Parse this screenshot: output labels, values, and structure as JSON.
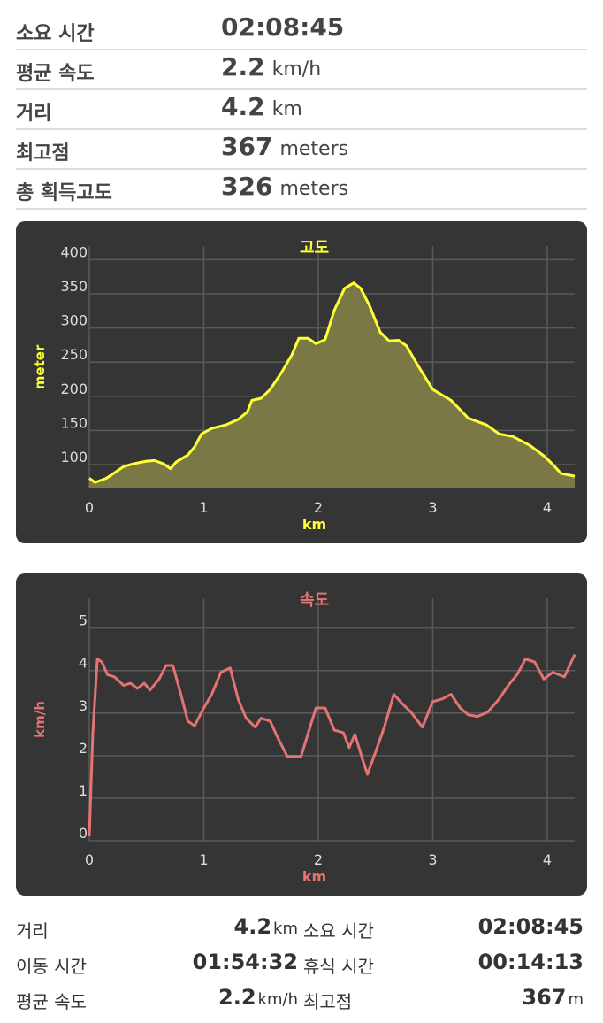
{
  "stats": [
    {
      "label": "소요 시간",
      "value": "02:08:45"
    },
    {
      "label": "평균 속도",
      "value": "2.2",
      "unit": "km/h"
    },
    {
      "label": "거리",
      "value": "4.2",
      "unit": "km"
    },
    {
      "label": "최고점",
      "value": "367",
      "unit": "meters"
    },
    {
      "label": "총 획득고도",
      "value": "326",
      "unit": "meters"
    }
  ],
  "chart_data": [
    {
      "type": "area",
      "title": "고도",
      "xlabel": "km",
      "ylabel": "meter",
      "color": "#ffff33",
      "fill": "#7a7845",
      "xlim": [
        0,
        4.24
      ],
      "ylim": [
        65,
        420
      ],
      "xticks": [
        0,
        1,
        2,
        3,
        4
      ],
      "yticks": [
        100,
        150,
        200,
        250,
        300,
        350,
        400
      ],
      "grid": true,
      "x": [
        0,
        0.05,
        0.15,
        0.3,
        0.38,
        0.5,
        0.57,
        0.65,
        0.71,
        0.76,
        0.86,
        0.92,
        0.98,
        1.07,
        1.19,
        1.3,
        1.38,
        1.42,
        1.5,
        1.58,
        1.68,
        1.77,
        1.83,
        1.91,
        1.98,
        2.06,
        2.14,
        2.23,
        2.31,
        2.37,
        2.45,
        2.54,
        2.62,
        2.7,
        2.77,
        2.86,
        3.0,
        3.16,
        3.31,
        3.47,
        3.58,
        3.7,
        3.85,
        3.97,
        4.05,
        4.12,
        4.24
      ],
      "values": [
        80,
        74,
        80,
        97,
        101,
        105,
        106,
        101,
        94,
        104,
        114,
        126,
        145,
        153,
        158,
        166,
        177,
        194,
        197,
        210,
        235,
        261,
        285,
        285,
        277,
        283,
        326,
        358,
        366,
        358,
        332,
        294,
        281,
        282,
        274,
        248,
        210,
        194,
        168,
        158,
        145,
        141,
        128,
        113,
        100,
        87,
        83
      ]
    },
    {
      "type": "line",
      "title": "속도",
      "xlabel": "km",
      "ylabel": "km/h",
      "color": "#e57373",
      "xlim": [
        0,
        4.24
      ],
      "ylim": [
        0,
        5.7
      ],
      "xticks": [
        0,
        1,
        2,
        3,
        4
      ],
      "yticks": [
        0,
        1,
        2,
        3,
        4,
        5
      ],
      "grid": true,
      "x": [
        0,
        0.03,
        0.07,
        0.11,
        0.16,
        0.22,
        0.3,
        0.36,
        0.42,
        0.48,
        0.53,
        0.61,
        0.67,
        0.73,
        0.8,
        0.86,
        0.92,
        1.0,
        1.07,
        1.15,
        1.23,
        1.3,
        1.37,
        1.45,
        1.5,
        1.58,
        1.65,
        1.73,
        1.85,
        1.92,
        1.98,
        2.06,
        2.14,
        2.22,
        2.27,
        2.32,
        2.39,
        2.43,
        2.5,
        2.58,
        2.66,
        2.73,
        2.81,
        2.91,
        3.0,
        3.08,
        3.16,
        3.24,
        3.31,
        3.39,
        3.48,
        3.58,
        3.66,
        3.74,
        3.81,
        3.89,
        3.97,
        4.05,
        4.15,
        4.24
      ],
      "values": [
        0.1,
        2.5,
        4.27,
        4.2,
        3.9,
        3.85,
        3.65,
        3.7,
        3.58,
        3.7,
        3.54,
        3.8,
        4.12,
        4.12,
        3.44,
        2.81,
        2.7,
        3.12,
        3.44,
        3.96,
        4.06,
        3.33,
        2.88,
        2.67,
        2.88,
        2.81,
        2.4,
        1.98,
        1.98,
        2.6,
        3.12,
        3.12,
        2.6,
        2.54,
        2.19,
        2.5,
        1.88,
        1.56,
        2.08,
        2.7,
        3.44,
        3.23,
        3.02,
        2.67,
        3.27,
        3.33,
        3.44,
        3.12,
        2.96,
        2.92,
        3.02,
        3.33,
        3.65,
        3.92,
        4.27,
        4.2,
        3.8,
        3.96,
        3.85,
        4.38
      ]
    }
  ],
  "summary": [
    [
      {
        "label": "거리",
        "value": "4.2",
        "unit": "km"
      },
      {
        "label": "소요 시간",
        "value": "02:08:45"
      }
    ],
    [
      {
        "label": "이동 시간",
        "value": "01:54:32"
      },
      {
        "label": "휴식 시간",
        "value": "00:14:13"
      }
    ],
    [
      {
        "label": "평균 속도",
        "value": "2.2",
        "unit": "km/h"
      },
      {
        "label": "최고점",
        "value": "367",
        "unit": "m"
      }
    ]
  ]
}
